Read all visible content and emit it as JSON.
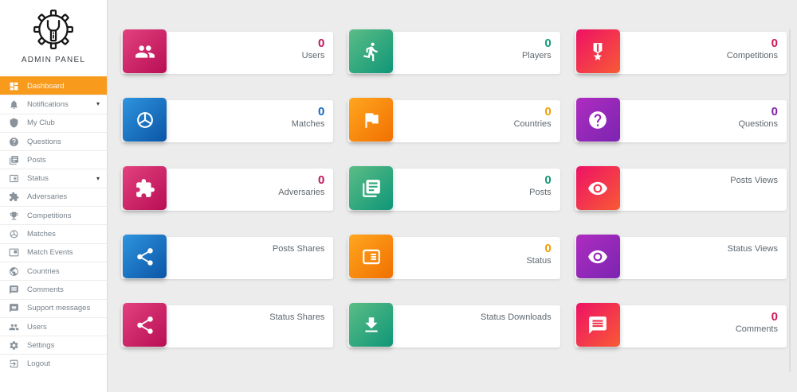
{
  "app": {
    "title": "ADMIN PANEL",
    "logo_icon": "gear-wrench-icon"
  },
  "colors": {
    "background": "#ececec",
    "sidebar_active_bg": "#f89b1c",
    "themes": {
      "pink": {
        "from": "#e2427e",
        "to": "#b80d55",
        "count": "#c2175b"
      },
      "green": {
        "from": "#5bbd86",
        "to": "#0f9678",
        "count": "#149c77"
      },
      "redorange": {
        "from": "#ee1165",
        "to": "#f85a35",
        "count": "#d21556"
      },
      "blue": {
        "from": "#2e94de",
        "to": "#0b55a6",
        "count": "#1668c1"
      },
      "orange": {
        "from": "#ffa61f",
        "to": "#f17001",
        "count": "#f59f00"
      },
      "purple": {
        "from": "#ae2cc0",
        "to": "#7b25b1",
        "count": "#7d21a5"
      }
    }
  },
  "sidebar": {
    "items": [
      {
        "label": "Dashboard",
        "icon": "dashboard-icon",
        "active": true,
        "caret": false
      },
      {
        "label": "Notifications",
        "icon": "bell-icon",
        "active": false,
        "caret": true
      },
      {
        "label": "My Club",
        "icon": "shield-icon",
        "active": false,
        "caret": false
      },
      {
        "label": "Questions",
        "icon": "question-icon",
        "active": false,
        "caret": false
      },
      {
        "label": "Posts",
        "icon": "posts-icon",
        "active": false,
        "caret": false
      },
      {
        "label": "Status",
        "icon": "status-icon",
        "active": false,
        "caret": true
      },
      {
        "label": "Adversaries",
        "icon": "puzzle-icon",
        "active": false,
        "caret": false
      },
      {
        "label": "Competitions",
        "icon": "trophy-icon",
        "active": false,
        "caret": false
      },
      {
        "label": "Matches",
        "icon": "volleyball-icon",
        "active": false,
        "caret": false
      },
      {
        "label": "Match Events",
        "icon": "match-events-icon",
        "active": false,
        "caret": false
      },
      {
        "label": "Countries",
        "icon": "globe-icon",
        "active": false,
        "caret": false
      },
      {
        "label": "Comments",
        "icon": "comment-icon",
        "active": false,
        "caret": false
      },
      {
        "label": "Support messages",
        "icon": "chat-icon",
        "active": false,
        "caret": false
      },
      {
        "label": "Users",
        "icon": "users-icon",
        "active": false,
        "caret": false
      },
      {
        "label": "Settings",
        "icon": "gear-icon",
        "active": false,
        "caret": false
      },
      {
        "label": "Logout",
        "icon": "logout-icon",
        "active": false,
        "caret": false
      }
    ]
  },
  "dashboard": {
    "cards": [
      {
        "label": "Users",
        "count": "0",
        "icon": "users-icon",
        "theme": "pink"
      },
      {
        "label": "Players",
        "count": "0",
        "icon": "player-icon",
        "theme": "green"
      },
      {
        "label": "Competitions",
        "count": "0",
        "icon": "medal-icon",
        "theme": "redorange"
      },
      {
        "label": "Matches",
        "count": "0",
        "icon": "volleyball-icon",
        "theme": "blue"
      },
      {
        "label": "Countries",
        "count": "0",
        "icon": "flag-icon",
        "theme": "orange"
      },
      {
        "label": "Questions",
        "count": "0",
        "icon": "question-icon",
        "theme": "purple"
      },
      {
        "label": "Adversaries",
        "count": "0",
        "icon": "puzzle-icon",
        "theme": "pink"
      },
      {
        "label": "Posts",
        "count": "0",
        "icon": "posts-icon",
        "theme": "green"
      },
      {
        "label": "Posts Views",
        "count": null,
        "icon": "eye-icon",
        "theme": "redorange"
      },
      {
        "label": "Posts Shares",
        "count": null,
        "icon": "share-icon",
        "theme": "blue"
      },
      {
        "label": "Status",
        "count": "0",
        "icon": "status-icon",
        "theme": "orange"
      },
      {
        "label": "Status Views",
        "count": null,
        "icon": "eye-icon",
        "theme": "purple"
      },
      {
        "label": "Status Shares",
        "count": null,
        "icon": "share-icon",
        "theme": "pink"
      },
      {
        "label": "Status Downloads",
        "count": null,
        "icon": "download-icon",
        "theme": "green"
      },
      {
        "label": "Comments",
        "count": "0",
        "icon": "comment-icon",
        "theme": "redorange"
      }
    ]
  }
}
